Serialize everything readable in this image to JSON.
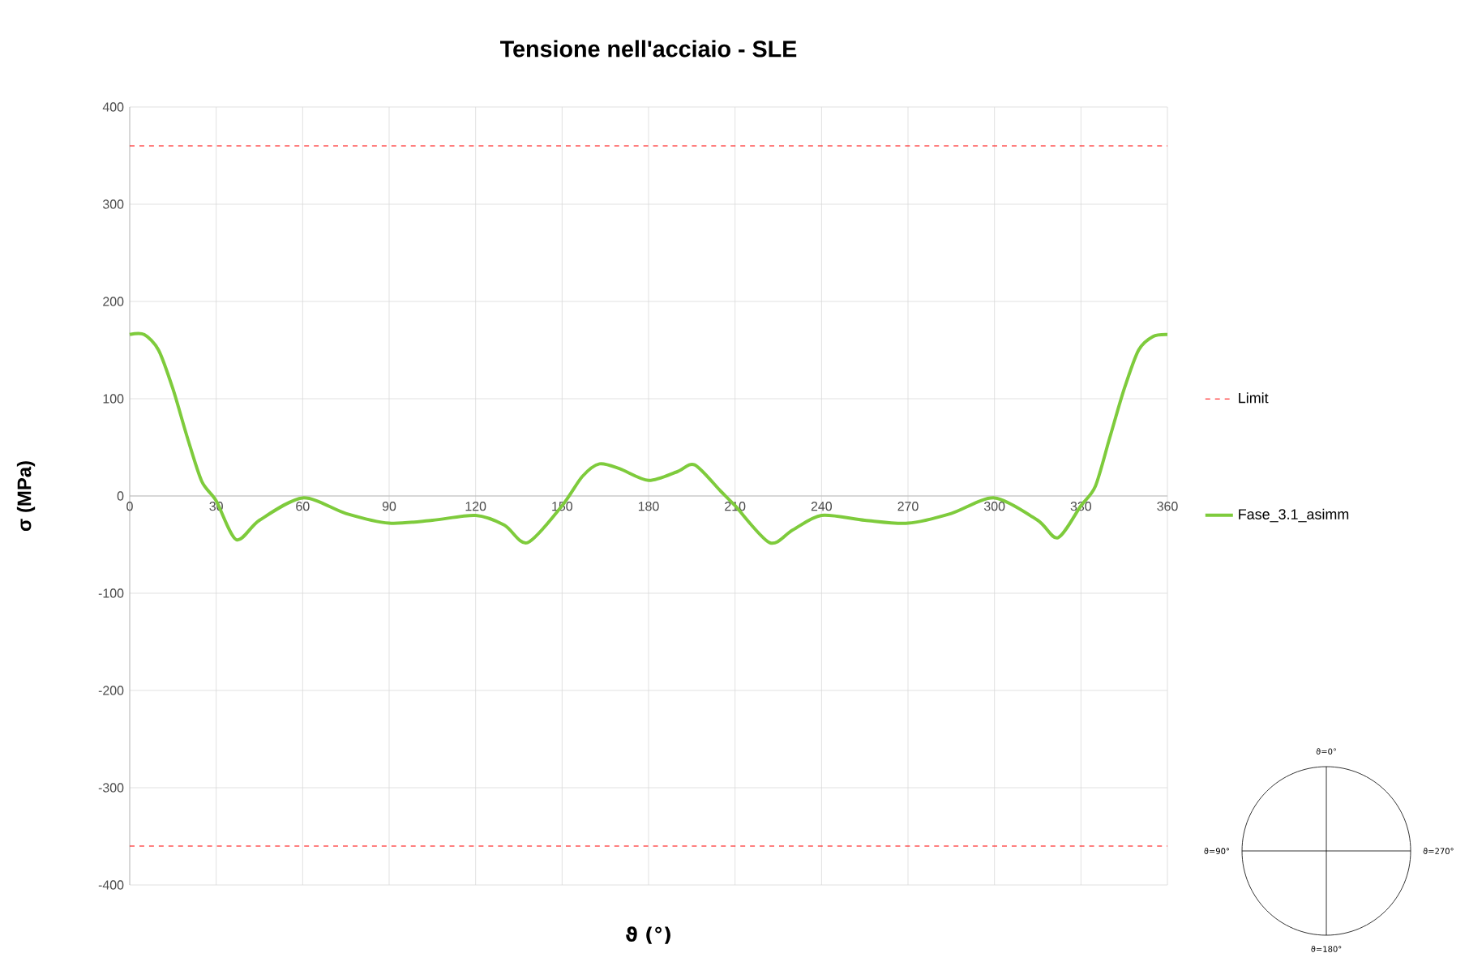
{
  "chart_data": {
    "type": "line",
    "title": "Tensione nell'acciaio - SLE",
    "xlabel": "ϑ (°)",
    "ylabel": "σ (MPa)",
    "x": [
      0,
      5,
      10,
      15,
      20,
      25,
      30,
      37,
      45,
      60,
      75,
      90,
      105,
      120,
      130,
      138,
      150,
      157,
      163,
      170,
      180,
      190,
      196,
      205,
      210,
      222,
      230,
      240,
      255,
      270,
      285,
      300,
      315,
      322,
      330,
      335,
      340,
      345,
      350,
      355,
      360
    ],
    "series": [
      {
        "name": "Fase_3.1_asimm",
        "color": "#7ecb3c",
        "values": [
          166,
          166,
          150,
          110,
          60,
          15,
          -5,
          -45,
          -25,
          -2,
          -18,
          -28,
          -25,
          -20,
          -30,
          -48,
          -10,
          20,
          33,
          28,
          16,
          25,
          32,
          5,
          -10,
          -48,
          -35,
          -20,
          -25,
          -28,
          -18,
          -2,
          -25,
          -43,
          -10,
          10,
          60,
          110,
          150,
          164,
          166
        ]
      }
    ],
    "xlim": [
      0,
      360
    ],
    "xticks": [
      0,
      30,
      60,
      90,
      120,
      150,
      180,
      210,
      240,
      270,
      300,
      330,
      360
    ],
    "ylim": [
      -400,
      400
    ],
    "yticks": [
      -400,
      -300,
      -200,
      -100,
      0,
      100,
      200,
      300,
      400
    ],
    "ref_lines": [
      {
        "axis": "y",
        "value": 360,
        "label": "Limit",
        "color": "#ff0000",
        "line_style": "dashed"
      },
      {
        "axis": "y",
        "value": -360,
        "color": "#ff0000",
        "line_style": "dashed"
      }
    ],
    "grid": true,
    "legend": "right",
    "annotations": [
      "ϑ=0°",
      "ϑ=90°",
      "ϑ=270°",
      "ϑ=180°"
    ]
  }
}
